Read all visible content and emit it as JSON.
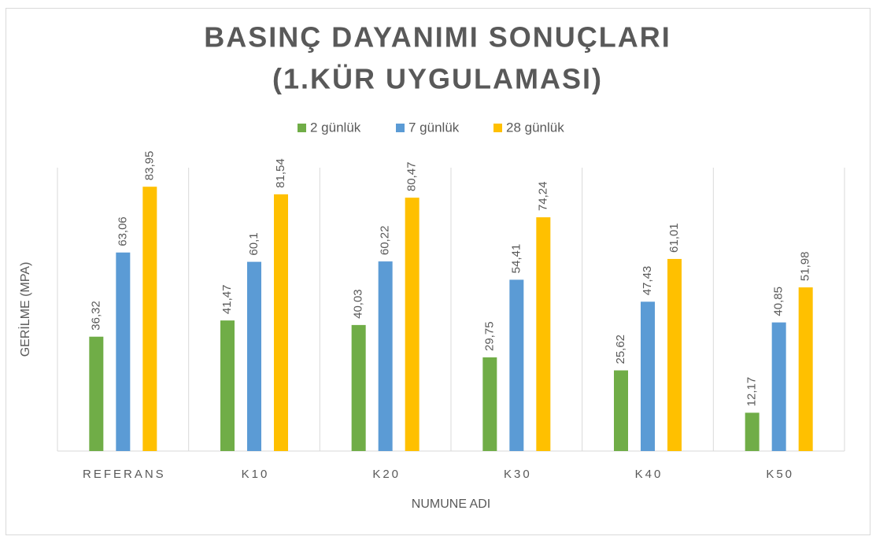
{
  "chart_data": {
    "type": "bar",
    "title": "BASINÇ DAYANIMI SONUÇLARI",
    "subtitle": "(1.KÜR UYGULAMASI)",
    "x_label": "NUMUNE ADI",
    "y_label": "GERİLME (MPA)",
    "categories": [
      "REFERANS",
      "K10",
      "K20",
      "K30",
      "K40",
      "K50"
    ],
    "series": [
      {
        "name": "2 günlük",
        "color": "#70ad47",
        "values": [
          36.32,
          41.47,
          40.03,
          29.75,
          25.62,
          12.17
        ],
        "value_labels": [
          "36,32",
          "41,47",
          "40,03",
          "29,75",
          "25,62",
          "12,17"
        ]
      },
      {
        "name": "7 günlük",
        "color": "#5b9bd5",
        "values": [
          63.06,
          60.1,
          60.22,
          54.41,
          47.43,
          40.85
        ],
        "value_labels": [
          "63,06",
          "60,1",
          "60,22",
          "54,41",
          "47,43",
          "40,85"
        ]
      },
      {
        "name": "28 günlük",
        "color": "#ffc000",
        "values": [
          83.95,
          81.54,
          80.47,
          74.24,
          61.01,
          51.98
        ],
        "value_labels": [
          "83,95",
          "81,54",
          "80,47",
          "74,24",
          "61,01",
          "51,98"
        ]
      }
    ],
    "ylim": [
      0,
      90
    ],
    "legend": "top"
  }
}
